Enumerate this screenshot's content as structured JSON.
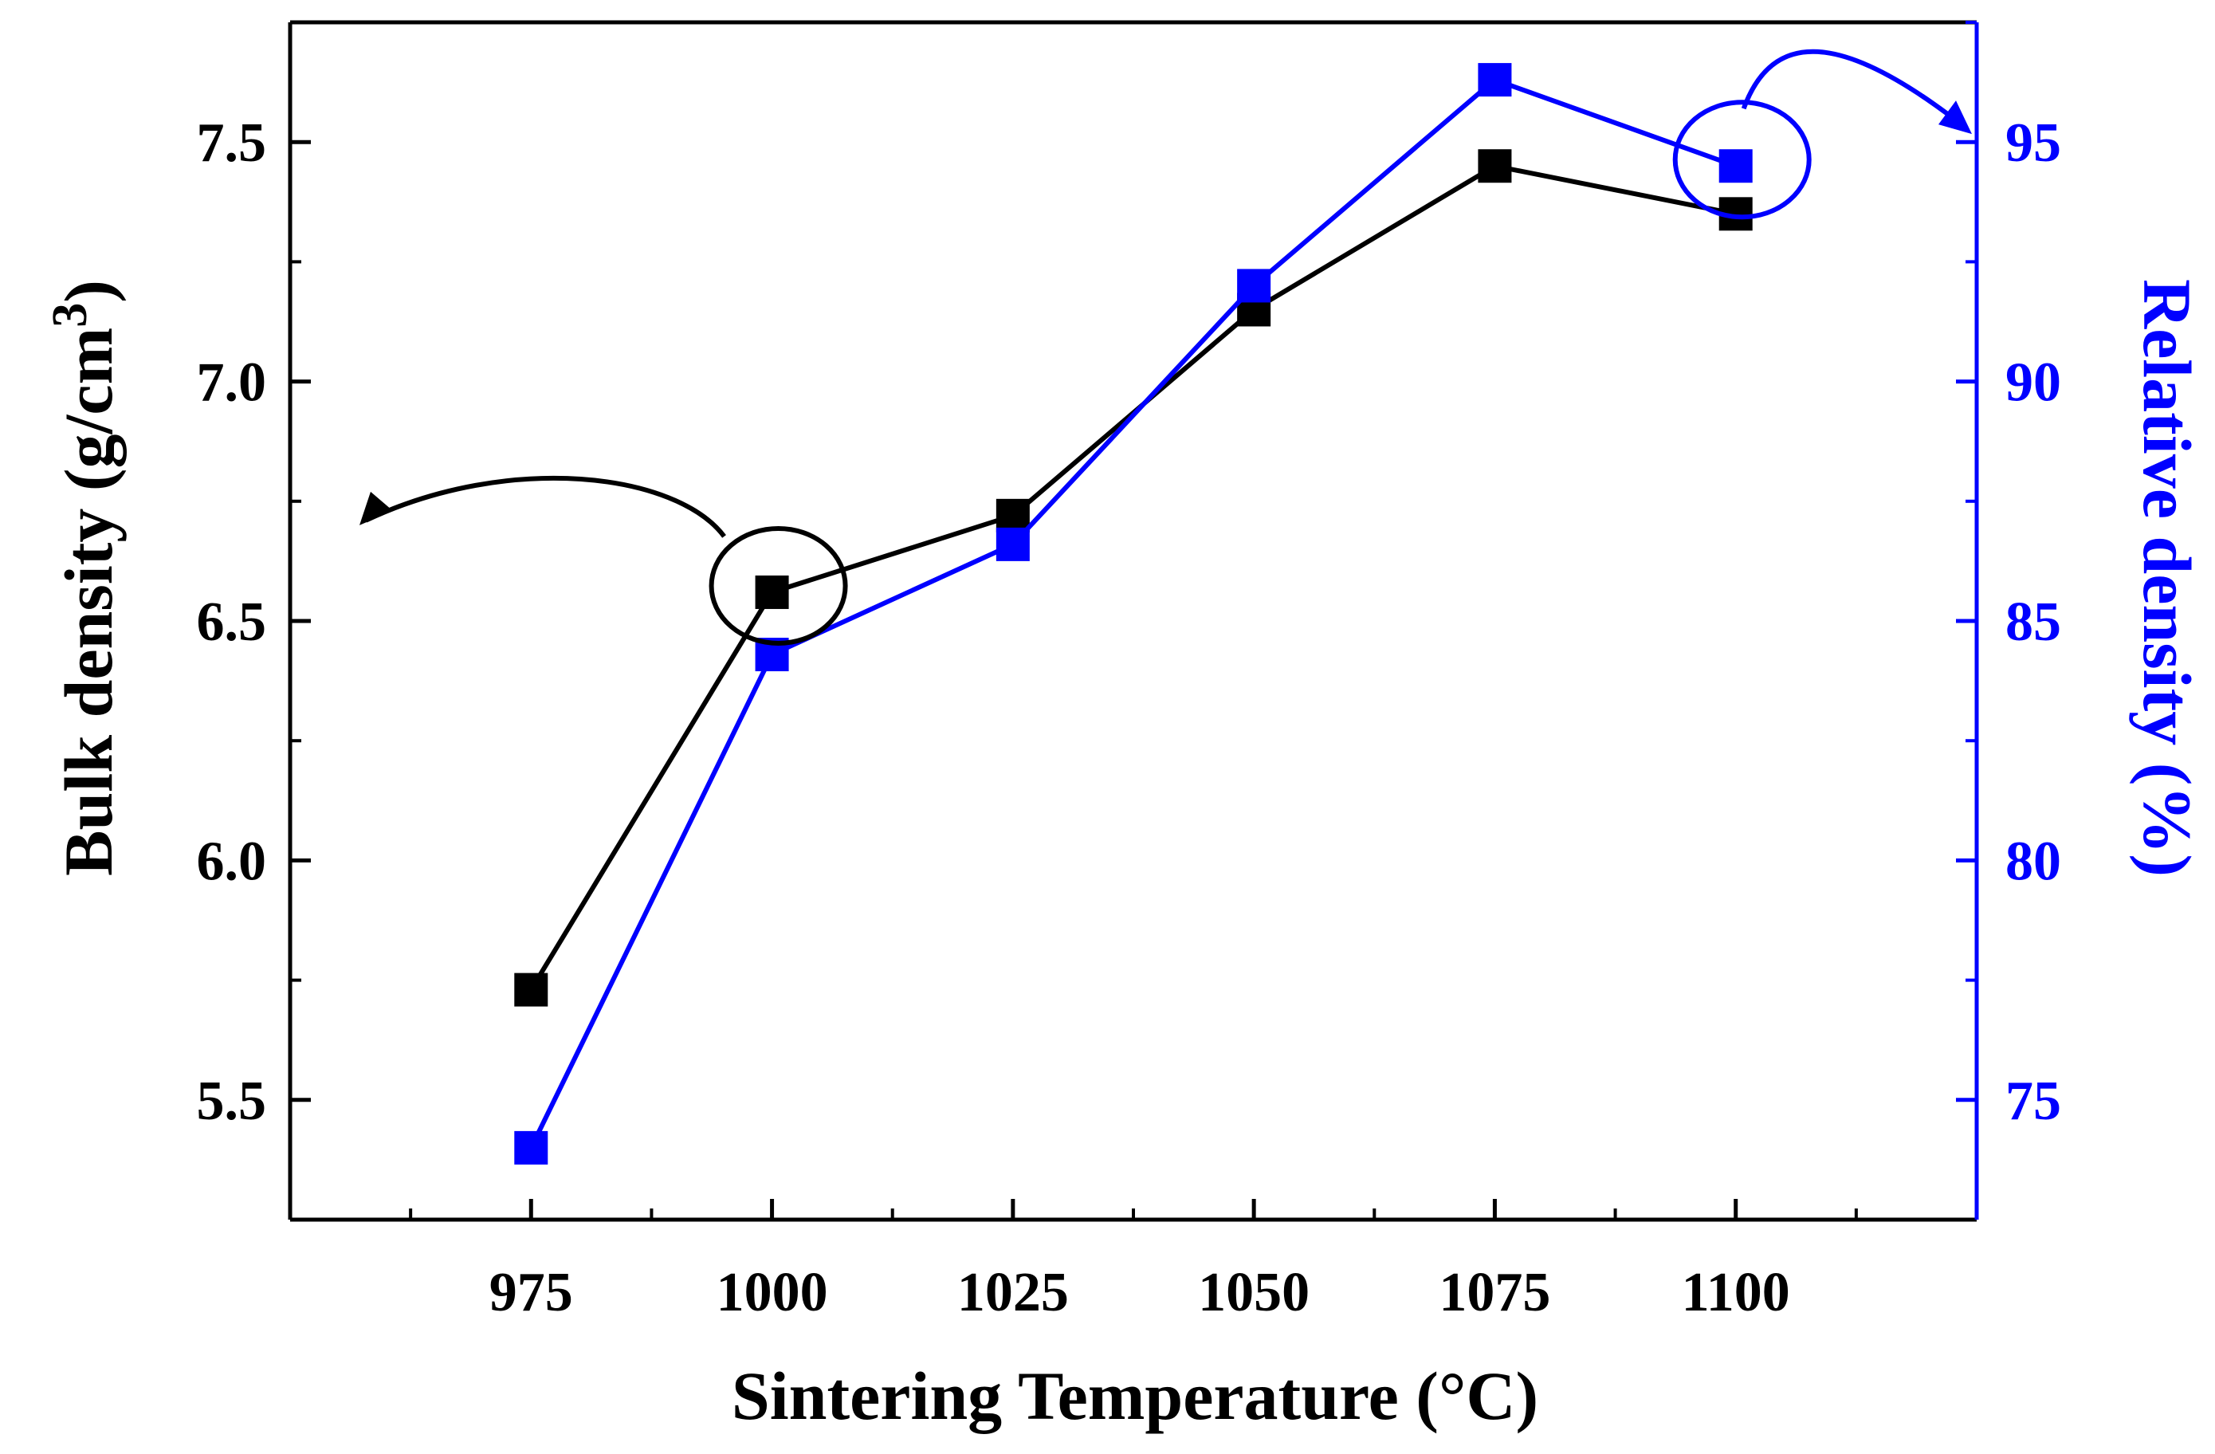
{
  "chart_data": {
    "type": "line",
    "title": "",
    "xlabel": "Sintering Temperature (°C)",
    "ylabel_left": "Bulk density (g/cm",
    "ylabel_left_superscript": "3",
    "ylabel_left_close": ")",
    "ylabel_right": "Relative density (%)",
    "x": [
      975,
      1000,
      1025,
      1050,
      1075,
      1100
    ],
    "xlim": [
      950,
      1125
    ],
    "x_ticks": [
      975,
      1000,
      1025,
      1050,
      1075,
      1100
    ],
    "x_tick_labels": [
      "975",
      "1000",
      "1025",
      "1050",
      "1075",
      "1100"
    ],
    "ylim_left": [
      5.25,
      7.75
    ],
    "y_ticks_left": [
      5.5,
      6.0,
      6.5,
      7.0,
      7.5
    ],
    "y_tick_labels_left": [
      "5.5",
      "6.0",
      "6.5",
      "7.0",
      "7.5"
    ],
    "ylim_right": [
      72.5,
      97.5
    ],
    "y_ticks_right": [
      75,
      80,
      85,
      90,
      95
    ],
    "y_tick_labels_right": [
      "75",
      "80",
      "85",
      "90",
      "95"
    ],
    "series": [
      {
        "name": "Bulk density",
        "axis": "left",
        "color": "#000000",
        "marker": "square",
        "values": [
          5.73,
          6.56,
          6.72,
          7.15,
          7.45,
          7.35
        ]
      },
      {
        "name": "Relative density",
        "axis": "right",
        "color": "#0000ff",
        "marker": "square",
        "values": [
          74.0,
          84.3,
          86.6,
          92.0,
          96.3,
          94.5
        ]
      }
    ],
    "annotations": [
      {
        "type": "circle-arrow",
        "series": "Bulk density",
        "x": 1000,
        "points_to": "left-axis",
        "color": "#000000"
      },
      {
        "type": "circle-arrow",
        "series": "Relative density",
        "x": 1100,
        "points_to": "right-axis",
        "color": "#0000ff"
      }
    ],
    "grid": false,
    "legend": "none"
  },
  "colors": {
    "left_axis": "#000000",
    "right_axis": "#0000ff"
  }
}
